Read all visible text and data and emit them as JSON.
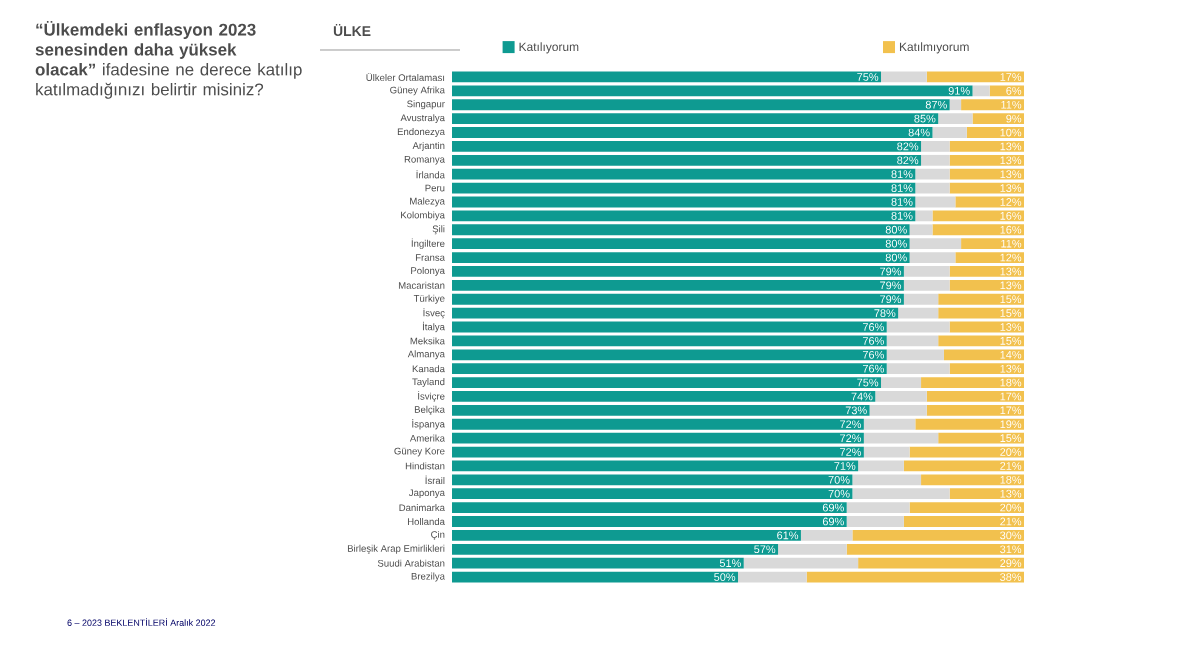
{
  "chart_data": {
    "type": "bar",
    "orientation": "horizontal",
    "stacked": true,
    "title": "**“Ülkemdeki enflasyon 2023 senesinden daha yüksek olacak”** ifadesine ne derece katılıp katılmadığınızı belirtir misiniz?",
    "annotations": [
      "ÜLKE",
      "6 – 2023 BEKLENTİLERİ Aralık 2022"
    ],
    "categories": [
      "Ülkeler Ortalaması",
      "Güney Afrika",
      "Singapur",
      "Avustralya",
      "Endonezya",
      "Arjantin",
      "Romanya",
      "İrlanda",
      "Peru",
      "Malezya",
      "Kolombiya",
      "Şili",
      "İngiltere",
      "Fransa",
      "Polonya",
      "Macaristan",
      "Türkiye",
      "İsveç",
      "İtalya",
      "Meksika",
      "Almanya",
      "Kanada",
      "Tayland",
      "İsviçre",
      "Belçika",
      "İspanya",
      "Amerika",
      "Güney Kore",
      "Hindistan",
      "İsrail",
      "Japonya",
      "Danimarka",
      "Hollanda",
      "Çin",
      "Birleşik Arap Emirlikleri",
      "Suudi Arabistan",
      "Brezilya"
    ],
    "series": [
      {
        "name": "Katılıyorum",
        "color": "#0e9a91",
        "values": [
          75,
          91,
          87,
          85,
          84,
          82,
          82,
          81,
          81,
          81,
          81,
          80,
          80,
          80,
          79,
          79,
          79,
          78,
          76,
          76,
          76,
          76,
          75,
          74,
          73,
          72,
          72,
          72,
          71,
          70,
          70,
          69,
          69,
          61,
          57,
          51,
          50
        ],
        "value_labels": [
          "75%",
          "91%",
          "87%",
          "85%",
          "84%",
          "82%",
          "82%",
          "81%",
          "81%",
          "81%",
          "81%",
          "80%",
          "80%",
          "80%",
          "79%",
          "79%",
          "79%",
          "78%",
          "76%",
          "76%",
          "76%",
          "76%",
          "75%",
          "74%",
          "73%",
          "72%",
          "72%",
          "72%",
          "71%",
          "70%",
          "70%",
          "69%",
          "69%",
          "61%",
          "57%",
          "51%",
          "50%"
        ]
      },
      {
        "color": "#d9d9d9",
        "values": [
          8,
          3,
          2,
          6,
          6,
          5,
          5,
          6,
          6,
          7,
          3,
          4,
          9,
          8,
          8,
          8,
          6,
          7,
          11,
          9,
          10,
          11,
          7,
          9,
          10,
          9,
          13,
          8,
          8,
          12,
          17,
          11,
          10,
          9,
          12,
          20,
          12
        ]
      },
      {
        "name": "Katılmıyorum",
        "color": "#f2c14e",
        "values": [
          17,
          6,
          11,
          9,
          10,
          13,
          13,
          13,
          13,
          12,
          16,
          16,
          11,
          12,
          13,
          13,
          15,
          15,
          13,
          15,
          14,
          13,
          18,
          17,
          17,
          19,
          15,
          20,
          21,
          18,
          13,
          20,
          21,
          30,
          31,
          29,
          38
        ],
        "value_labels": [
          "17%",
          "6%",
          "11%",
          "9%",
          "10%",
          "13%",
          "13%",
          "13%",
          "13%",
          "12%",
          "16%",
          "16%",
          "11%",
          "12%",
          "13%",
          "13%",
          "15%",
          "15%",
          "13%",
          "15%",
          "14%",
          "13%",
          "18%",
          "17%",
          "17%",
          "19%",
          "15%",
          "20%",
          "21%",
          "18%",
          "13%",
          "20%",
          "21%",
          "30%",
          "31%",
          "29%",
          "38%"
        ]
      }
    ],
    "xlim": [
      0,
      100
    ],
    "tick_labels": "y",
    "legend": "top",
    "grid": false
  }
}
